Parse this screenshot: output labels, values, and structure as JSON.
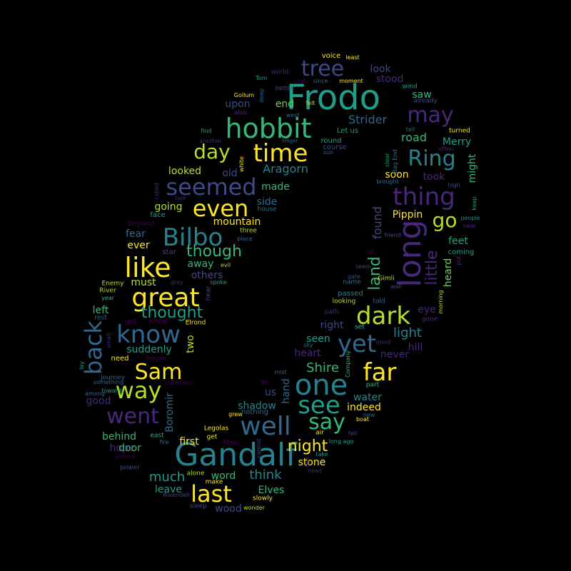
{
  "palette": {
    "background": "#000000",
    "yellow": "#fde725",
    "lime": "#b5de2b",
    "green": "#6ece58",
    "seafoam": "#35b779",
    "teal": "#1f9e89",
    "cyan": "#26828e",
    "steel": "#31688e",
    "indigo": "#3e4989",
    "violet": "#482878",
    "purple": "#440154"
  },
  "words": [
    "Frodo",
    "Gandalf",
    "one",
    "long",
    "hobbit",
    "time",
    "Ring",
    "Bilbo",
    "know",
    "like",
    "great",
    "Sam",
    "well",
    "see",
    "far",
    "last",
    "dark",
    "yet",
    "say",
    "way",
    "back",
    "went",
    "thing",
    "even",
    "seemed",
    "day",
    "tree",
    "may",
    "go",
    "though",
    "thought",
    "night",
    "little",
    "land",
    "Strider",
    "Aragorn",
    "Shire",
    "light",
    "found",
    "much",
    "think",
    "Elves",
    "Boromir",
    "shadow",
    "heart",
    "water",
    "indeed",
    "stone",
    "word",
    "look",
    "stood",
    "saw",
    "end",
    "upon",
    "road",
    "Merry",
    "might",
    "soon",
    "took",
    "looked",
    "old",
    "made",
    "going",
    "side",
    "mountain",
    "Pippin",
    "fear",
    "ever",
    "feet",
    "heard",
    "must",
    "away",
    "others",
    "left",
    "suddenly",
    "two",
    "first",
    "hope",
    "behind",
    "door",
    "leave",
    "wood",
    "hill",
    "eye",
    "seen",
    "right",
    "never",
    "us",
    "good",
    "hand",
    "voice",
    "least",
    "world",
    "Tom",
    "better",
    "cold",
    "since",
    "moment",
    "wind",
    "already",
    "Gollum",
    "deep",
    "also",
    "felt",
    "west",
    "Let us",
    "turned",
    "find",
    "longer",
    "round",
    "course",
    "tell",
    "often",
    "another",
    "sun",
    "white",
    "clear",
    "Bag End",
    "brought",
    "high",
    "called",
    "tale",
    "house",
    "face",
    "beyond",
    "three",
    "place",
    "keep",
    "people",
    "near",
    "star",
    "friend",
    "let",
    "coming",
    "put",
    "evil",
    "spoke",
    "grey",
    "Enemy",
    "River",
    "year",
    "rest",
    "got",
    "knew",
    "Elrond",
    "hear",
    "seem",
    "gate",
    "name",
    "Gimli",
    "passed",
    "looking",
    "wall",
    "morning",
    "told",
    "path",
    "set",
    "gone",
    "mind",
    "sky",
    "need",
    "began",
    "small",
    "journey",
    "towards",
    "lay",
    "something",
    "among",
    "darkness",
    "lie",
    "mist",
    "part",
    "Company",
    "grew",
    "nothing",
    "new",
    "boat",
    "Legolas",
    "get",
    "air",
    "fell",
    "east",
    "fire",
    "Men",
    "take",
    "cannot",
    "long ago",
    "ground",
    "power",
    "folk",
    "head",
    "alone",
    "make",
    "Rivendell",
    "slowly",
    "sleep",
    "wonder",
    "home"
  ]
}
